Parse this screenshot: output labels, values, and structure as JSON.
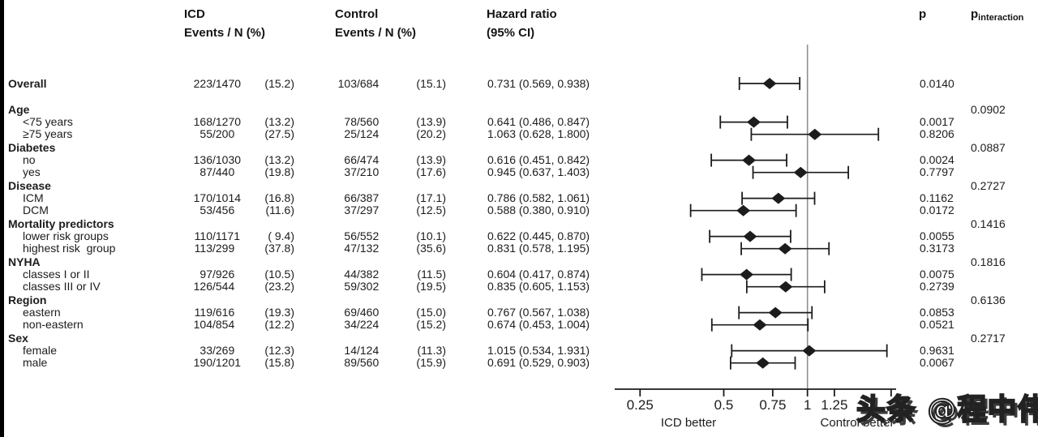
{
  "header": {
    "icd": {
      "line1": "ICD",
      "line2": "Events / N (%)"
    },
    "control": {
      "line1": "Control",
      "line2": "Events / N (%)"
    },
    "hazard": {
      "line1": "Hazard ratio",
      "line2": "(95% CI)"
    },
    "p": "p",
    "p_interaction": {
      "base": "p",
      "sub": "interaction"
    }
  },
  "watermark": "头条 @程中伟",
  "chart_data": {
    "type": "forest",
    "title": "",
    "x_scale": "log",
    "xlim": [
      0.2,
      2.08
    ],
    "reference_line": 1,
    "x_ticks": [
      {
        "value": 0.25,
        "label": "0.25"
      },
      {
        "value": 0.5,
        "label": "0.5"
      },
      {
        "value": 0.75,
        "label": "0.75"
      },
      {
        "value": 1,
        "label": "1"
      },
      {
        "value": 1.25,
        "label": "1.25"
      },
      {
        "value": 2,
        "label": ""
      }
    ],
    "direction_labels": {
      "left": "ICD better",
      "right": "Control better"
    },
    "marker_color": "#1c1c1c",
    "reference_line_color": "#8f8f8f",
    "rows": [
      {
        "type": "overall",
        "label": "Overall",
        "icd": "223/1470",
        "icd_pct": "(15.2)",
        "control": "103/684",
        "control_pct": "(15.1)",
        "hr": 0.731,
        "ci": [
          0.569,
          0.938
        ],
        "hr_text": "0.731 (0.569, 0.938)",
        "p": "0.0140"
      },
      {
        "type": "group",
        "label": "Age",
        "p_interaction": "0.0902"
      },
      {
        "type": "sub",
        "label": "<75 years",
        "icd": "168/1270",
        "icd_pct": "(13.2)",
        "control": "78/560",
        "control_pct": "(13.9)",
        "hr": 0.641,
        "ci": [
          0.486,
          0.847
        ],
        "hr_text": "0.641 (0.486, 0.847)",
        "p": "0.0017"
      },
      {
        "type": "sub",
        "label": "≥75 years",
        "icd": "55/200",
        "icd_pct": "(27.5)",
        "control": "25/124",
        "control_pct": "(20.2)",
        "hr": 1.063,
        "ci": [
          0.628,
          1.8
        ],
        "hr_text": "1.063 (0.628, 1.800)",
        "p": "0.8206"
      },
      {
        "type": "group",
        "label": "Diabetes",
        "p_interaction": "0.0887"
      },
      {
        "type": "sub",
        "label": "no",
        "icd": "136/1030",
        "icd_pct": "(13.2)",
        "control": "66/474",
        "control_pct": "(13.9)",
        "hr": 0.616,
        "ci": [
          0.451,
          0.842
        ],
        "hr_text": "0.616 (0.451, 0.842)",
        "p": "0.0024"
      },
      {
        "type": "sub",
        "label": "yes",
        "icd": "87/440",
        "icd_pct": "(19.8)",
        "control": "37/210",
        "control_pct": "(17.6)",
        "hr": 0.945,
        "ci": [
          0.637,
          1.403
        ],
        "hr_text": "0.945 (0.637, 1.403)",
        "p": "0.7797"
      },
      {
        "type": "group",
        "label": "Disease",
        "p_interaction": "0.2727"
      },
      {
        "type": "sub",
        "label": "ICM",
        "icd": "170/1014",
        "icd_pct": "(16.8)",
        "control": "66/387",
        "control_pct": "(17.1)",
        "hr": 0.786,
        "ci": [
          0.582,
          1.061
        ],
        "hr_text": "0.786 (0.582, 1.061)",
        "p": "0.1162"
      },
      {
        "type": "sub",
        "label": "DCM",
        "icd": "53/456",
        "icd_pct": "(11.6)",
        "control": "37/297",
        "control_pct": "(12.5)",
        "hr": 0.588,
        "ci": [
          0.38,
          0.91
        ],
        "hr_text": "0.588 (0.380, 0.910)",
        "p": "0.0172"
      },
      {
        "type": "group",
        "label": "Mortality predictors",
        "p_interaction": "0.1416"
      },
      {
        "type": "sub",
        "label": "lower risk groups",
        "icd": "110/1171",
        "icd_pct": "( 9.4)",
        "control": "56/552",
        "control_pct": "(10.1)",
        "hr": 0.622,
        "ci": [
          0.445,
          0.87
        ],
        "hr_text": "0.622 (0.445, 0.870)",
        "p": "0.0055"
      },
      {
        "type": "sub",
        "label": "highest risk  group",
        "icd": "113/299",
        "icd_pct": "(37.8)",
        "control": "47/132",
        "control_pct": "(35.6)",
        "hr": 0.831,
        "ci": [
          0.578,
          1.195
        ],
        "hr_text": "0.831 (0.578, 1.195)",
        "p": "0.3173"
      },
      {
        "type": "group",
        "label": "NYHA",
        "p_interaction": "0.1816"
      },
      {
        "type": "sub",
        "label": "classes I or II",
        "icd": "97/926",
        "icd_pct": "(10.5)",
        "control": "44/382",
        "control_pct": "(11.5)",
        "hr": 0.604,
        "ci": [
          0.417,
          0.874
        ],
        "hr_text": "0.604 (0.417, 0.874)",
        "p": "0.0075"
      },
      {
        "type": "sub",
        "label": "classes III or IV",
        "icd": "126/544",
        "icd_pct": "(23.2)",
        "control": "59/302",
        "control_pct": "(19.5)",
        "hr": 0.835,
        "ci": [
          0.605,
          1.153
        ],
        "hr_text": "0.835 (0.605, 1.153)",
        "p": "0.2739"
      },
      {
        "type": "group",
        "label": "Region",
        "p_interaction": "0.6136"
      },
      {
        "type": "sub",
        "label": "eastern",
        "icd": "119/616",
        "icd_pct": "(19.3)",
        "control": "69/460",
        "control_pct": "(15.0)",
        "hr": 0.767,
        "ci": [
          0.567,
          1.038
        ],
        "hr_text": "0.767 (0.567, 1.038)",
        "p": "0.0853"
      },
      {
        "type": "sub",
        "label": "non-eastern",
        "icd": "104/854",
        "icd_pct": "(12.2)",
        "control": "34/224",
        "control_pct": "(15.2)",
        "hr": 0.674,
        "ci": [
          0.453,
          1.004
        ],
        "hr_text": "0.674 (0.453, 1.004)",
        "p": "0.0521"
      },
      {
        "type": "group",
        "label": "Sex",
        "p_interaction": "0.2717"
      },
      {
        "type": "sub",
        "label": "female",
        "icd": "33/269",
        "icd_pct": "(12.3)",
        "control": "14/124",
        "control_pct": "(11.3)",
        "hr": 1.015,
        "ci": [
          0.534,
          1.931
        ],
        "hr_text": "1.015 (0.534, 1.931)",
        "p": "0.9631"
      },
      {
        "type": "sub",
        "label": "male",
        "icd": "190/1201",
        "icd_pct": "(15.8)",
        "control": "89/560",
        "control_pct": "(15.9)",
        "hr": 0.691,
        "ci": [
          0.529,
          0.903
        ],
        "hr_text": "0.691 (0.529, 0.903)",
        "p": "0.0067"
      }
    ]
  }
}
